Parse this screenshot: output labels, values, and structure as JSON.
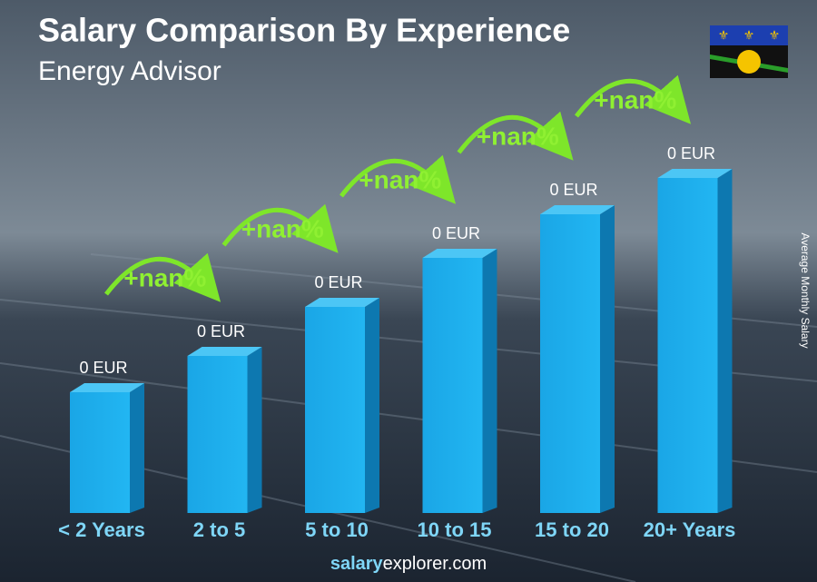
{
  "header": {
    "title": "Salary Comparison By Experience",
    "subtitle": "Energy Advisor"
  },
  "side_label": "Average Monthly Salary",
  "bars": [
    {
      "label": "< 2 Years",
      "value_label": "0 EUR"
    },
    {
      "label": "2 to 5",
      "value_label": "0 EUR"
    },
    {
      "label": "5 to 10",
      "value_label": "0 EUR"
    },
    {
      "label": "10 to 15",
      "value_label": "0 EUR"
    },
    {
      "label": "15 to 20",
      "value_label": "0 EUR"
    },
    {
      "label": "20+ Years",
      "value_label": "0 EUR"
    }
  ],
  "changes": [
    "+nan%",
    "+nan%",
    "+nan%",
    "+nan%",
    "+nan%"
  ],
  "footer": [
    "salary",
    "explorer",
    ".com"
  ]
}
